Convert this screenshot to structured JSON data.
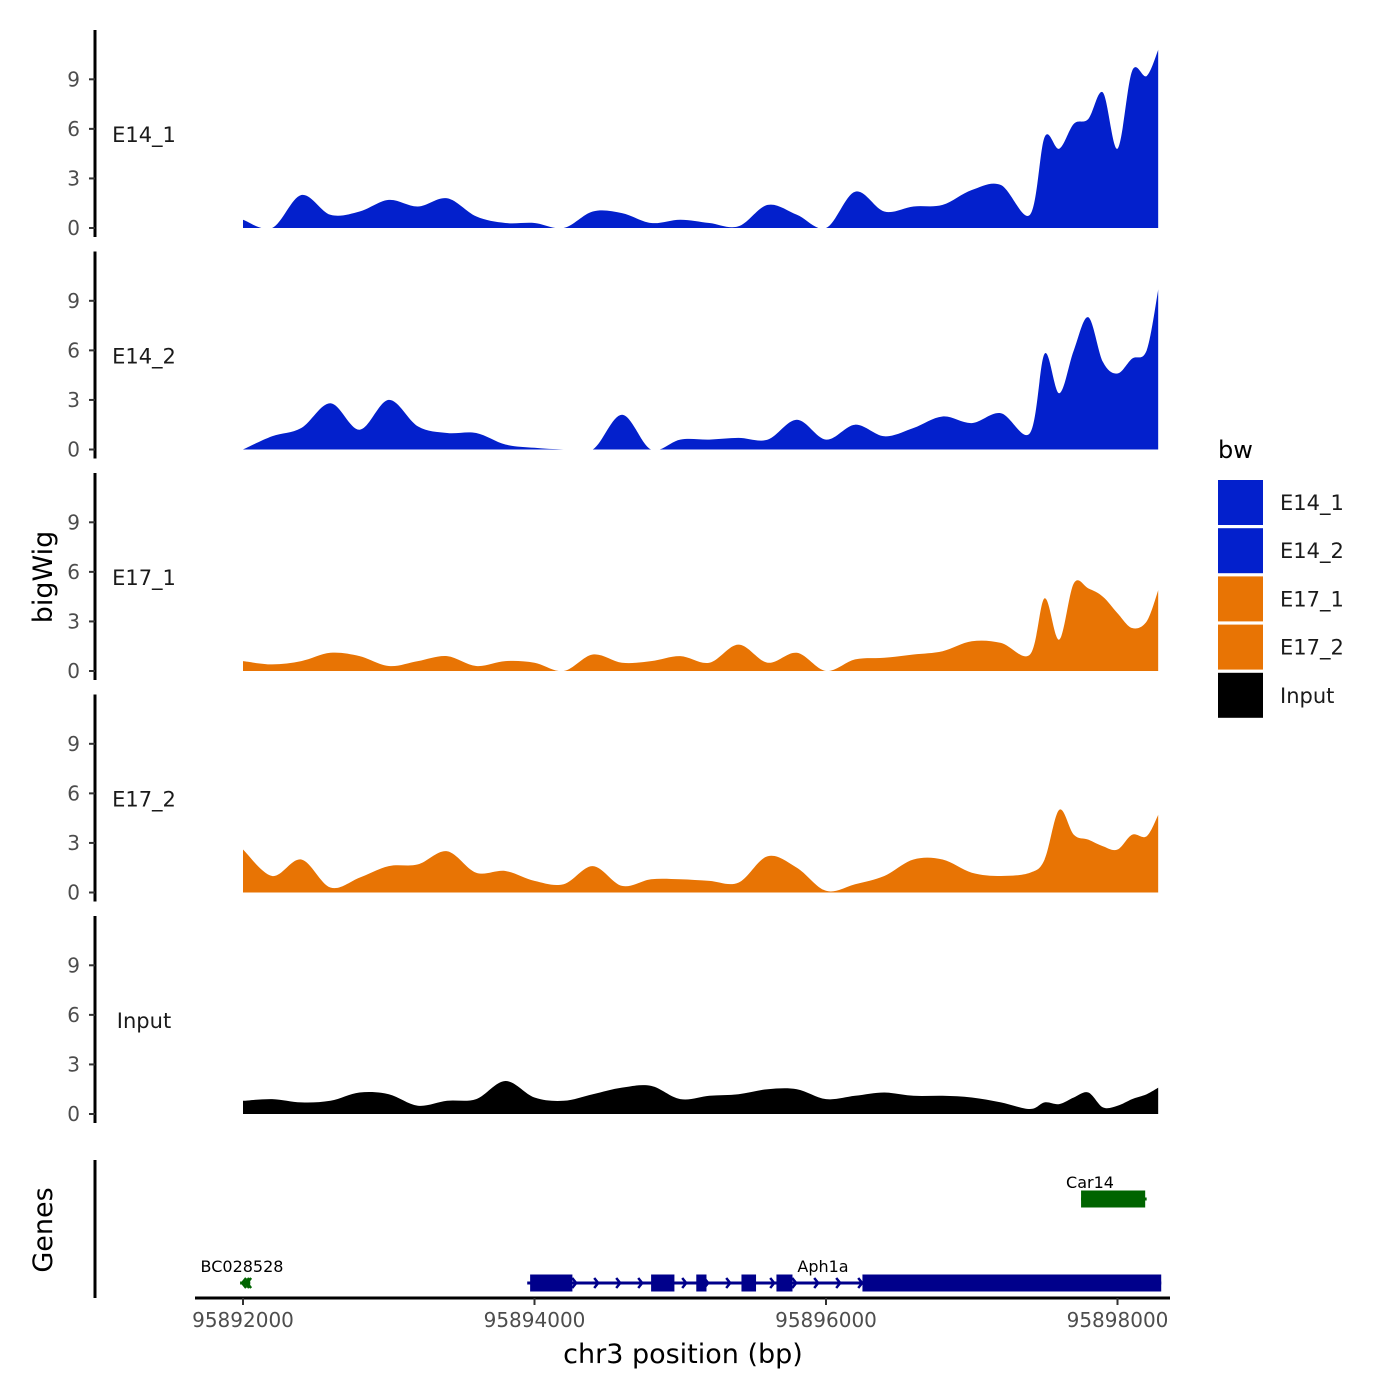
{
  "chart_data": {
    "type": "area",
    "description_free": true,
    "xlabel": "chr3 position (bp)",
    "ylabel_tracks": "bigWig",
    "ylabel_genes": "Genes",
    "xlim": [
      95891500,
      95898600
    ],
    "x_ticks": [
      95892000,
      95894000,
      95896000,
      95898000
    ],
    "x_tick_labels": [
      "95892000",
      "95894000",
      "95896000",
      "95898000"
    ],
    "ylim": [
      0,
      11.5
    ],
    "y_ticks": [
      0,
      3,
      6,
      9
    ],
    "y_tick_labels": [
      "0",
      "3",
      "6",
      "9"
    ],
    "x_positions": [
      95892000,
      95892200,
      95892400,
      95892600,
      95892800,
      95893000,
      95893200,
      95893400,
      95893600,
      95893800,
      95894000,
      95894200,
      95894400,
      95894600,
      95894800,
      95895000,
      95895200,
      95895400,
      95895600,
      95895800,
      95896000,
      95896200,
      95896400,
      95896600,
      95896800,
      95897000,
      95897200,
      95897400,
      95897500,
      95897600,
      95897700,
      95897800,
      95897900,
      95898000,
      95898100,
      95898200,
      95898280
    ],
    "series": [
      {
        "name": "E14_1",
        "color": "#0320cc",
        "values": [
          0.5,
          0.0,
          2.0,
          0.8,
          1.0,
          1.7,
          1.3,
          1.8,
          0.7,
          0.3,
          0.3,
          0.0,
          1.0,
          0.9,
          0.3,
          0.5,
          0.3,
          0.1,
          1.4,
          0.8,
          0.0,
          2.2,
          1.0,
          1.3,
          1.4,
          2.3,
          2.6,
          0.8,
          5.5,
          4.8,
          6.3,
          6.6,
          8.2,
          4.8,
          9.5,
          9.2,
          10.8
        ]
      },
      {
        "name": "E14_2",
        "color": "#0320cc",
        "values": [
          0.0,
          0.8,
          1.3,
          2.8,
          1.2,
          3.0,
          1.4,
          1.0,
          1.0,
          0.3,
          0.1,
          0.0,
          0.0,
          2.1,
          0.0,
          0.6,
          0.6,
          0.7,
          0.6,
          1.8,
          0.6,
          1.5,
          0.8,
          1.3,
          2.0,
          1.6,
          2.2,
          1.0,
          5.8,
          3.4,
          6.0,
          8.0,
          5.3,
          4.6,
          5.5,
          6.0,
          9.7
        ]
      },
      {
        "name": "E17_1",
        "color": "#e87404",
        "values": [
          0.6,
          0.4,
          0.6,
          1.1,
          0.9,
          0.3,
          0.6,
          0.9,
          0.3,
          0.6,
          0.5,
          0.0,
          1.0,
          0.5,
          0.6,
          0.9,
          0.5,
          1.6,
          0.5,
          1.1,
          0.0,
          0.7,
          0.8,
          1.0,
          1.2,
          1.8,
          1.7,
          1.0,
          4.4,
          1.9,
          5.3,
          5.0,
          4.5,
          3.5,
          2.6,
          3.0,
          4.9
        ]
      },
      {
        "name": "E17_2",
        "color": "#e87404",
        "values": [
          2.6,
          1.0,
          2.0,
          0.3,
          0.9,
          1.6,
          1.7,
          2.5,
          1.2,
          1.3,
          0.7,
          0.5,
          1.6,
          0.4,
          0.8,
          0.8,
          0.7,
          0.6,
          2.2,
          1.5,
          0.1,
          0.5,
          1.0,
          2.0,
          2.0,
          1.2,
          1.0,
          1.2,
          2.0,
          5.0,
          3.5,
          3.2,
          2.8,
          2.6,
          3.5,
          3.4,
          4.7
        ]
      },
      {
        "name": "Input",
        "color": "#000000",
        "values": [
          0.8,
          0.9,
          0.7,
          0.8,
          1.3,
          1.2,
          0.5,
          0.8,
          0.9,
          2.0,
          1.0,
          0.8,
          1.2,
          1.6,
          1.7,
          0.9,
          1.1,
          1.2,
          1.5,
          1.5,
          0.9,
          1.1,
          1.3,
          1.1,
          1.1,
          1.0,
          0.7,
          0.3,
          0.7,
          0.6,
          1.0,
          1.3,
          0.4,
          0.5,
          0.9,
          1.2,
          1.6
        ]
      }
    ],
    "track_labels": [
      "E14_1",
      "E14_2",
      "E17_1",
      "E17_2",
      "Input"
    ],
    "legend": {
      "title": "bw",
      "position": "right",
      "entries": [
        {
          "label": "E14_1",
          "color": "#0320cc"
        },
        {
          "label": "E14_2",
          "color": "#0320cc"
        },
        {
          "label": "E17_1",
          "color": "#e87404"
        },
        {
          "label": "E17_2",
          "color": "#e87404"
        },
        {
          "label": "Input",
          "color": "#000000"
        }
      ]
    },
    "genes": [
      {
        "name": "BC028528",
        "strand": "-",
        "color": "#006400",
        "row": 2,
        "start": 95891980,
        "end": 95892050,
        "exons": []
      },
      {
        "name": "Aph1a",
        "strand": "+",
        "color": "#00008b",
        "row": 2,
        "start": 95893950,
        "end": 95898300,
        "exons": [
          [
            95893970,
            95894260
          ],
          [
            95894800,
            95894960
          ],
          [
            95895110,
            95895180
          ],
          [
            95895420,
            95895520
          ],
          [
            95895660,
            95895770
          ],
          [
            95896250,
            95898300
          ]
        ]
      },
      {
        "name": "Car14",
        "strand": "-",
        "color": "#006400",
        "row": 1,
        "start": 95897750,
        "end": 95898200,
        "exons": [
          [
            95897750,
            95898190
          ]
        ]
      }
    ]
  }
}
